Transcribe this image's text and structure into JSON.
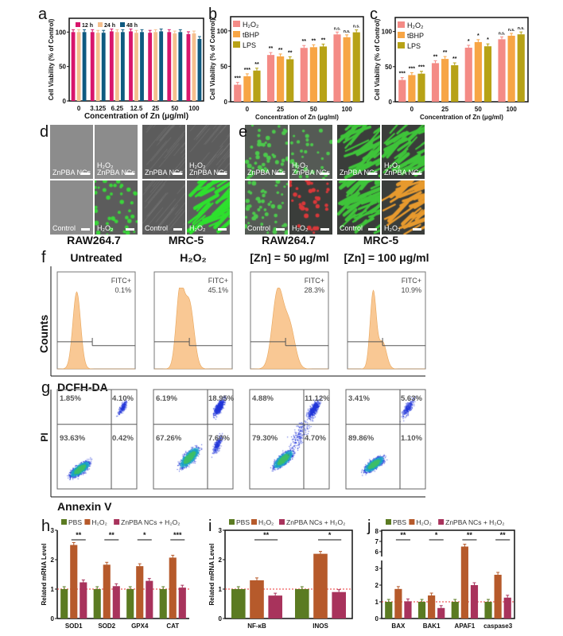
{
  "panel_labels": {
    "a": "a",
    "b": "b",
    "c": "c",
    "d": "d",
    "e": "e",
    "f": "f",
    "g": "g",
    "h": "h",
    "i": "i",
    "j": "j"
  },
  "chart_data": [
    {
      "panel": "a",
      "type": "bar",
      "categories": [
        "0",
        "3.125",
        "6.25",
        "12.5",
        "25",
        "50",
        "100"
      ],
      "series": [
        {
          "name": "12 h",
          "color": "#d8166c",
          "values": [
            100,
            100,
            101,
            101,
            99,
            100,
            97
          ]
        },
        {
          "name": "24 h",
          "color": "#f5bf8e",
          "values": [
            100,
            99,
            100,
            99,
            100,
            98,
            98
          ]
        },
        {
          "name": "48 h",
          "color": "#0f5a80",
          "values": [
            100,
            99,
            100,
            100,
            101,
            100,
            90
          ]
        }
      ],
      "xlabel": "Concentration of Zn (μg/ml)",
      "ylabel": "Cell Viability (% of Control)",
      "ylim": [
        0,
        120
      ],
      "yticks": [
        0,
        50,
        100
      ],
      "legend": "top-left"
    },
    {
      "panel": "b",
      "type": "bar",
      "categories": [
        "0",
        "25",
        "50",
        "100"
      ],
      "series": [
        {
          "name": "H₂O₂",
          "color": "#f48b86",
          "values": [
            24,
            66,
            76,
            95
          ],
          "significance": [
            "***",
            "**",
            "**",
            "n.s."
          ]
        },
        {
          "name": "tBHP",
          "color": "#f7a545",
          "values": [
            36,
            64,
            77,
            91
          ],
          "significance": [
            "***",
            "**",
            "**",
            "n.s."
          ]
        },
        {
          "name": "LPS",
          "color": "#b7a216",
          "values": [
            44,
            60,
            78,
            98
          ],
          "significance": [
            "**",
            "**",
            "**",
            "n.s."
          ]
        }
      ],
      "xlabel": "Concentration of Zn (μg/ml)",
      "ylabel": "Cell Viability (% of Control)",
      "ylim": [
        0,
        120
      ],
      "yticks": [
        0,
        50,
        100
      ],
      "legend": "top-left"
    },
    {
      "panel": "c",
      "type": "bar",
      "categories": [
        "0",
        "25",
        "50",
        "100"
      ],
      "series": [
        {
          "name": "H₂O₂",
          "color": "#f48b86",
          "values": [
            31,
            55,
            77,
            89
          ],
          "significance": [
            "***",
            "**",
            "*",
            "n.s."
          ]
        },
        {
          "name": "tBHP",
          "color": "#f7a545",
          "values": [
            38,
            61,
            85,
            94
          ],
          "significance": [
            "***",
            "**",
            "*",
            "n.s."
          ]
        },
        {
          "name": "LPS",
          "color": "#b7a216",
          "values": [
            40,
            52,
            79,
            96
          ],
          "significance": [
            "***",
            "**",
            "*",
            "n.s."
          ]
        }
      ],
      "xlabel": "Concentration of Zn (μg/ml)",
      "ylabel": "Cell Viability (% of Control)",
      "ylim": [
        0,
        120
      ],
      "yticks": [
        0,
        50,
        100
      ],
      "legend": "top-left"
    },
    {
      "panel": "h",
      "type": "bar",
      "categories": [
        "SOD1",
        "SOD2",
        "GPX4",
        "CAT"
      ],
      "series": [
        {
          "name": "PBS",
          "color": "#5b7b22",
          "values": [
            1.0,
            1.0,
            1.0,
            1.0
          ]
        },
        {
          "name": "H₂O₂",
          "color": "#b65a2b",
          "values": [
            2.5,
            1.83,
            1.78,
            2.07
          ]
        },
        {
          "name": "ZnPBA NCs + H₂O₂",
          "color": "#a8335c",
          "values": [
            1.23,
            1.1,
            1.28,
            1.05
          ]
        }
      ],
      "significance": [
        "**",
        "**",
        "*",
        "***"
      ],
      "ylabel": "Related mRNA Level",
      "ylim": [
        0,
        3
      ],
      "yticks": [
        0,
        1,
        2,
        3
      ],
      "reference_line": 1,
      "legend": "top"
    },
    {
      "panel": "i",
      "type": "bar",
      "categories": [
        "NF-κB",
        "INOS"
      ],
      "series": [
        {
          "name": "PBS",
          "color": "#5b7b22",
          "values": [
            1.0,
            1.0
          ]
        },
        {
          "name": "H₂O₂",
          "color": "#b65a2b",
          "values": [
            1.3,
            2.2
          ]
        },
        {
          "name": "ZnPBA NCs + H₂O₂",
          "color": "#a8335c",
          "values": [
            0.78,
            0.9
          ]
        }
      ],
      "significance": [
        "**",
        "*"
      ],
      "ylabel": "Related mRNA Level",
      "ylim": [
        0,
        3
      ],
      "yticks": [
        0,
        1,
        2,
        3
      ],
      "reference_line": 1,
      "legend": "top"
    },
    {
      "panel": "j",
      "type": "bar",
      "categories": [
        "BAX",
        "BAK1",
        "APAF1",
        "caspase3"
      ],
      "series": [
        {
          "name": "PBS",
          "color": "#5b7b22",
          "values": [
            1.0,
            1.0,
            1.0,
            1.0
          ]
        },
        {
          "name": "H₂O₂",
          "color": "#b65a2b",
          "values": [
            1.77,
            1.38,
            6.5,
            2.62
          ]
        },
        {
          "name": "ZnPBA NCs + H₂O₂",
          "color": "#a8335c",
          "values": [
            1.03,
            0.63,
            2.0,
            1.25
          ]
        }
      ],
      "significance": [
        "**",
        "*",
        "**",
        "**"
      ],
      "ylim": [
        0,
        8
      ],
      "yticks": [
        0,
        1,
        2,
        3,
        6,
        7,
        8
      ],
      "axis_break": [
        3.5,
        5.5
      ],
      "reference_line": 1,
      "legend": "top"
    }
  ],
  "microscopy": {
    "d_groups": [
      {
        "caption": "RAW264.7",
        "tiles": [
          "ZnPBA NCs",
          "H₂O₂\nZnPBA NCs",
          "Control",
          "H₂O₂"
        ]
      },
      {
        "caption": "MRC-5",
        "tiles": [
          "ZnPBA NCs",
          "H₂O₂\nZnPBA NCs",
          "Control",
          "H₂O₂"
        ]
      }
    ],
    "e_groups": [
      {
        "caption": "RAW264.7",
        "tiles": [
          "ZnPBA NCs",
          "H₂O₂\nZnPBA NCs",
          "Control",
          "H₂O₂"
        ]
      },
      {
        "caption": "MRC-5",
        "tiles": [
          "ZnPBA NCs",
          "H₂O₂\nZnPBA NCs",
          "Control",
          "H₂O₂"
        ]
      }
    ]
  },
  "flow_histograms": {
    "ylabel": "Counts",
    "xlabel": "DCFH-DA",
    "fill_color": "#f9c894",
    "samples": [
      {
        "title": "Untreated",
        "gate_label": "FITC+",
        "positive": "0.1%"
      },
      {
        "title": "H₂O₂",
        "gate_label": "FITC+",
        "positive": "45.1%"
      },
      {
        "title": "[Zn] = 50 μg/ml",
        "gate_label": "FITC+",
        "positive": "28.3%"
      },
      {
        "title": "[Zn] = 100 μg/ml",
        "gate_label": "FITC+",
        "positive": "10.9%"
      }
    ]
  },
  "flow_quadrants": {
    "ylabel": "PI",
    "xlabel": "Annexin V",
    "samples": [
      {
        "upper_left": "1.85%",
        "upper_right": "4.10%",
        "lower_left": "93.63%",
        "lower_right": "0.42%"
      },
      {
        "upper_left": "6.19%",
        "upper_right": "18.95%",
        "lower_left": "67.26%",
        "lower_right": "7.60%"
      },
      {
        "upper_left": "4.88%",
        "upper_right": "11.12%",
        "lower_left": "79.30%",
        "lower_right": "4.70%"
      },
      {
        "upper_left": "3.41%",
        "upper_right": "5.63%",
        "lower_left": "89.86%",
        "lower_right": "1.10%"
      }
    ]
  }
}
